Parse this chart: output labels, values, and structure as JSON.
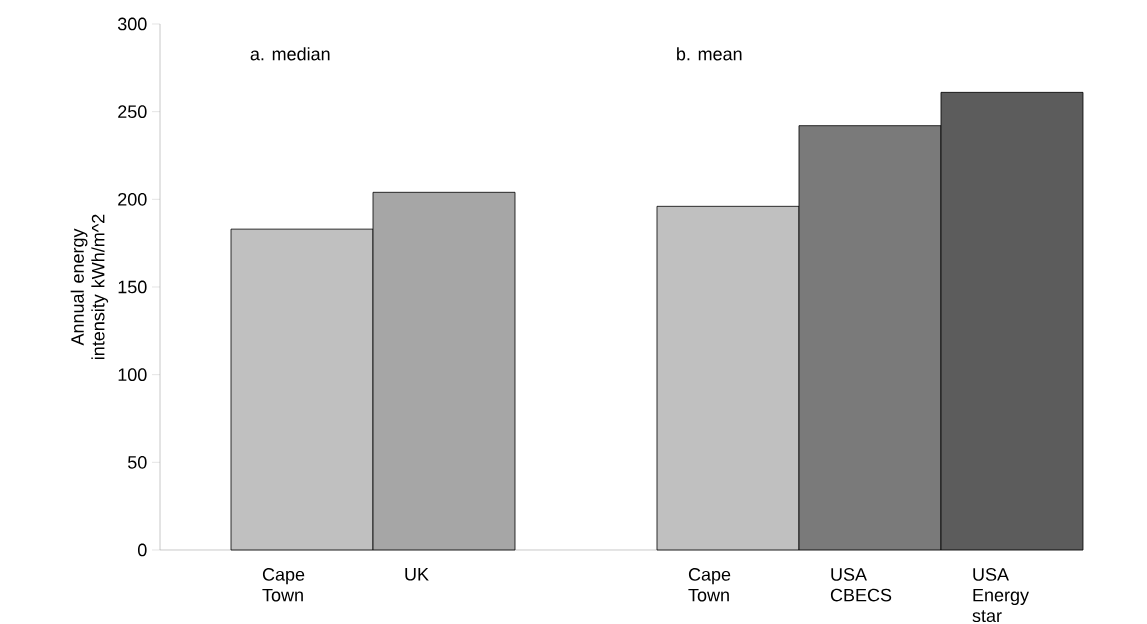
{
  "chart_data": {
    "type": "bar",
    "ylabel": "Annual energy intensity kWh/m^2",
    "categories": [
      "Cape Town",
      "UK",
      null,
      "Cape Town",
      "USA CBECS",
      "USA Energy star"
    ],
    "values": [
      183,
      204,
      null,
      196,
      242,
      261
    ],
    "colors": [
      "#c0c0c0",
      "#a6a6a6",
      null,
      "#c0c0c0",
      "#7a7a7a",
      "#5c5c5c"
    ],
    "ylim": [
      0,
      300
    ],
    "yticks": [
      0,
      50,
      100,
      150,
      200,
      250,
      300
    ],
    "annotations": [
      "a. median",
      "b. mean"
    ]
  }
}
